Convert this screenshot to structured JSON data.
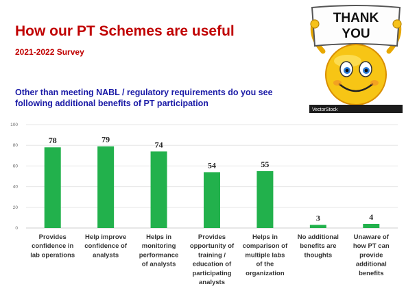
{
  "header": {
    "title": "How our PT Schemes are useful",
    "subtitle": "2021-2022 Survey",
    "question": "Other than meeting NABL / regulatory requirements do you see following additional benefits of PT participation"
  },
  "sticker": {
    "sign_line1": "THANK",
    "sign_line2": "YOU",
    "watermark": "VectorStock",
    "icon": "thank-you-smiley"
  },
  "colors": {
    "title": "#c00000",
    "question": "#1a1aa6",
    "bar": "#22b14c",
    "grid": "#e6e6e6"
  },
  "chart_data": {
    "type": "bar",
    "categories": [
      [
        "Provides",
        "confidence in",
        "lab operations"
      ],
      [
        "Help improve",
        "confidence of",
        "analysts"
      ],
      [
        "Helps in",
        "monitoring",
        "performance",
        "of analysts"
      ],
      [
        "Provides",
        "opportunity of",
        "training /",
        "education of",
        "participating",
        "analysts"
      ],
      [
        "Helps in",
        "comparison of",
        "multiple labs",
        "of the",
        "organization"
      ],
      [
        "No additional",
        "benefits are",
        "thoughts"
      ],
      [
        "Unaware of",
        "how PT can",
        "provide",
        "additional",
        "benefits"
      ]
    ],
    "values": [
      78,
      79,
      74,
      54,
      55,
      3,
      4
    ],
    "ylim": [
      0,
      100
    ],
    "yticks": [
      0,
      20,
      40,
      60,
      80,
      100
    ],
    "grid": true,
    "legend": "none"
  }
}
